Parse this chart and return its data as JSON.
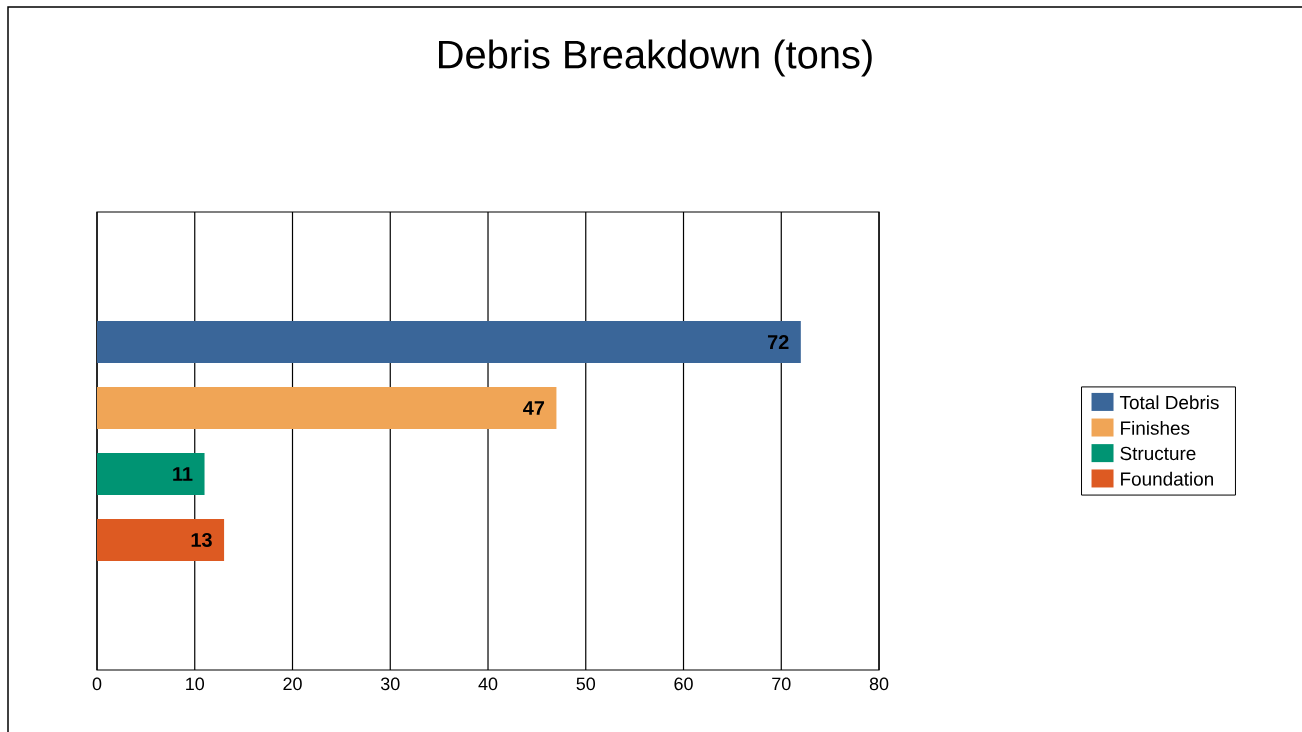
{
  "chart_data": {
    "type": "bar",
    "orientation": "horizontal",
    "title": "Debris Breakdown (tons)",
    "categories": [
      null
    ],
    "series": [
      {
        "name": "Total Debris",
        "color": "#3a6699",
        "values": [
          72
        ]
      },
      {
        "name": "Finishes",
        "color": "#f0a556",
        "values": [
          47
        ]
      },
      {
        "name": "Structure",
        "color": "#009473",
        "values": [
          11
        ]
      },
      {
        "name": "Foundation",
        "color": "#dd5a22",
        "values": [
          13
        ]
      }
    ],
    "xlim": [
      0,
      80
    ],
    "xticks": [
      0,
      10,
      20,
      30,
      40,
      50,
      60,
      70,
      80
    ],
    "grid": "x",
    "legend": "right",
    "data_labels": true
  }
}
